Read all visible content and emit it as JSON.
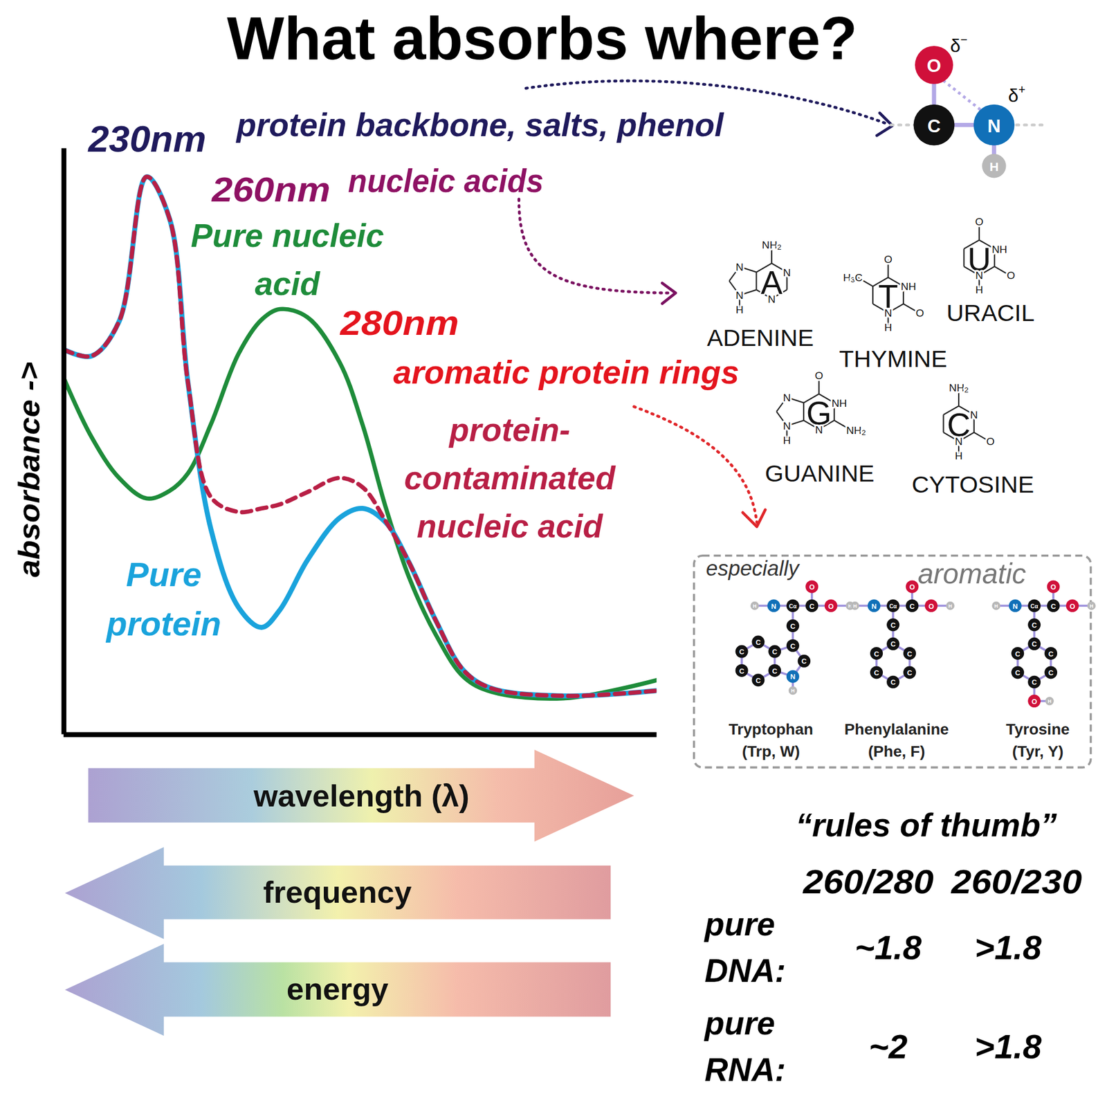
{
  "chart_data": {
    "type": "line",
    "title": "What absorbs where?",
    "y_label": "absorbance ->",
    "tick_labels": false,
    "xlim": [
      212,
      341
    ],
    "ylim": [
      0,
      100
    ],
    "x": [
      212,
      218,
      224,
      230,
      235,
      239,
      244,
      250,
      255,
      259,
      265,
      272,
      277,
      282,
      287,
      293,
      299,
      305,
      321,
      341
    ],
    "series": [
      {
        "name": "Pure nucleic acid",
        "color": "#1e8c3a",
        "line_style": "solid",
        "values": [
          60.8,
          50.8,
          43.8,
          40.3,
          41.6,
          44.6,
          53.0,
          65.0,
          70.8,
          72.6,
          71.2,
          63.5,
          52.8,
          38.8,
          27.0,
          16.9,
          9.8,
          7.3,
          6.2,
          9.3
        ]
      },
      {
        "name": "Pure protein",
        "color": "#1aa3dc",
        "line_style": "solid",
        "values": [
          65.7,
          64.6,
          70.5,
          95.2,
          88.0,
          60.0,
          35.0,
          21.7,
          18.3,
          21.3,
          29.8,
          37.0,
          38.6,
          36.2,
          29.5,
          19.3,
          10.9,
          7.9,
          6.6,
          7.5
        ]
      },
      {
        "name": "protein-contaminated nucleic acid",
        "color": "#b81f45",
        "line_style": "dashed",
        "values": [
          65.7,
          64.6,
          70.5,
          95.2,
          88.0,
          60.0,
          40.5,
          38.0,
          38.6,
          39.3,
          41.4,
          43.8,
          42.2,
          36.4,
          29.5,
          19.3,
          10.9,
          7.9,
          6.6,
          7.5
        ]
      }
    ],
    "annotations": [
      {
        "text": "230nm",
        "color": "#1f1a5c"
      },
      {
        "text": "protein backbone, salts, phenol",
        "color": "#1f1a5c"
      },
      {
        "text": "260nm",
        "color": "#8e1163"
      },
      {
        "text": "nucleic acids",
        "color": "#8e1163"
      },
      {
        "text": "280nm",
        "color": "#e4141d"
      },
      {
        "text": "aromatic protein rings",
        "color": "#e4141d"
      }
    ]
  },
  "arrows": [
    {
      "text": "wavelength (λ)",
      "direction": "right"
    },
    {
      "text": "frequency",
      "direction": "left"
    },
    {
      "text": "energy",
      "direction": "left"
    }
  ],
  "atom_colors": {
    "C": "#111111",
    "Cα": "#111111",
    "N": "#1170b8",
    "O": "#d0103a",
    "H": "#b8b8b8"
  },
  "peptide_bond": {
    "atoms": [
      "O",
      "C",
      "N",
      "H"
    ],
    "charges": [
      "δ−",
      "δ+"
    ]
  },
  "bases": [
    {
      "name": "ADENINE",
      "letter": "A",
      "atoms": [
        "NH2",
        "N",
        "N",
        "N",
        "N",
        "H"
      ]
    },
    {
      "name": "THYMINE",
      "letter": "T",
      "atoms": [
        "O",
        "NH",
        "O",
        "N",
        "H",
        "H3C"
      ]
    },
    {
      "name": "URACIL",
      "letter": "U",
      "atoms": [
        "O",
        "NH",
        "O",
        "N",
        "H"
      ]
    },
    {
      "name": "GUANINE",
      "letter": "G",
      "atoms": [
        "O",
        "NH",
        "NH2",
        "N",
        "N",
        "N",
        "H"
      ]
    },
    {
      "name": "CYTOSINE",
      "letter": "C",
      "atoms": [
        "NH2",
        "N",
        "O",
        "N",
        "H"
      ]
    }
  ],
  "amino_acid_box": {
    "labels": [
      "especially",
      "aromatic"
    ],
    "amino_acids": [
      {
        "name": "Tryptophan",
        "abbreviation": "(Trp, W)",
        "atoms": [
          "H",
          "N",
          "Cα",
          "C",
          "O",
          "O",
          "H",
          "C",
          "C",
          "C",
          "N",
          "C",
          "C",
          "C",
          "C",
          "C",
          "C",
          "H"
        ]
      },
      {
        "name": "Phenylalanine",
        "abbreviation": "(Phe, F)",
        "atoms": [
          "H",
          "N",
          "Cα",
          "C",
          "O",
          "O",
          "H",
          "C",
          "C",
          "C",
          "C",
          "C",
          "C",
          "C"
        ]
      },
      {
        "name": "Tyrosine",
        "abbreviation": "(Tyr, Y)",
        "atoms": [
          "H",
          "N",
          "Cα",
          "C",
          "O",
          "O",
          "H",
          "C",
          "C",
          "C",
          "C",
          "C",
          "C",
          "C",
          "O",
          "H"
        ]
      }
    ]
  },
  "rules_of_thumb": {
    "title": "“rules of thumb”",
    "columns": [
      "260/280",
      "260/230"
    ],
    "rows": [
      {
        "label": "pure DNA:",
        "values": [
          "~1.8",
          ">1.8"
        ]
      },
      {
        "label": "pure RNA:",
        "values": [
          "~2",
          ">1.8"
        ]
      }
    ]
  }
}
